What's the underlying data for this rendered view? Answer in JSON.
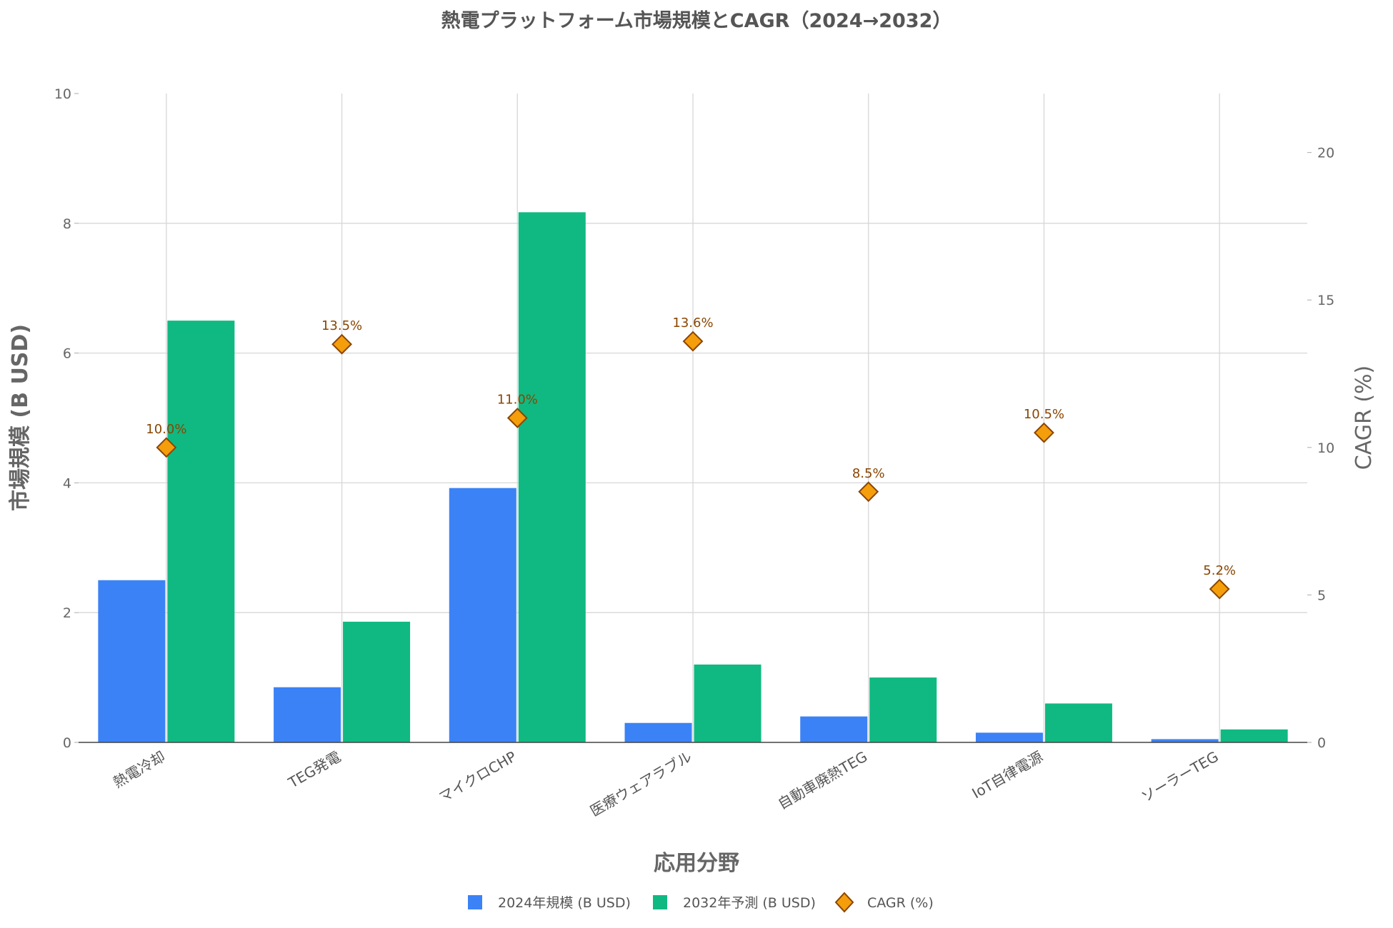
{
  "chart_data": {
    "type": "bar",
    "title": "熱電プラットフォーム市場規模とCAGR（2024→2032）",
    "xlabel": "応用分野",
    "ylabel": "市場規模 (B USD)",
    "y2label": "CAGR (%)",
    "categories": [
      "熱電冷却",
      "TEG発電",
      "マイクロCHP",
      "医療ウェアラブル",
      "自動車廃熱TEG",
      "IoT自律電源",
      "ソーラーTEG"
    ],
    "series": [
      {
        "name": "2024年規模 (B USD)",
        "type": "bar",
        "axis": "left",
        "color": "#3b82f6",
        "values": [
          2.5,
          0.85,
          3.92,
          0.3,
          0.4,
          0.15,
          0.05
        ]
      },
      {
        "name": "2032年予測 (B USD)",
        "type": "bar",
        "axis": "left",
        "color": "#10b981",
        "values": [
          6.5,
          1.86,
          8.17,
          1.2,
          1.0,
          0.6,
          0.2
        ]
      },
      {
        "name": "CAGR (%)",
        "type": "scatter",
        "marker": "diamond",
        "axis": "right",
        "color": "#f59e0b",
        "edge_color": "#8a4500",
        "values": [
          10.0,
          13.5,
          11.0,
          13.6,
          8.5,
          10.5,
          5.2
        ],
        "labels": [
          "10.0%",
          "13.5%",
          "11.0%",
          "13.6%",
          "8.5%",
          "10.5%",
          "5.2%"
        ]
      }
    ],
    "ylim": [
      0,
      10
    ],
    "y2lim": [
      0,
      22
    ],
    "yticks": [
      "0",
      "2",
      "4",
      "6",
      "8",
      "10"
    ],
    "y2ticks": [
      "0",
      "5",
      "10",
      "15",
      "20"
    ],
    "grid": true,
    "legend_position": "bottom-center"
  }
}
